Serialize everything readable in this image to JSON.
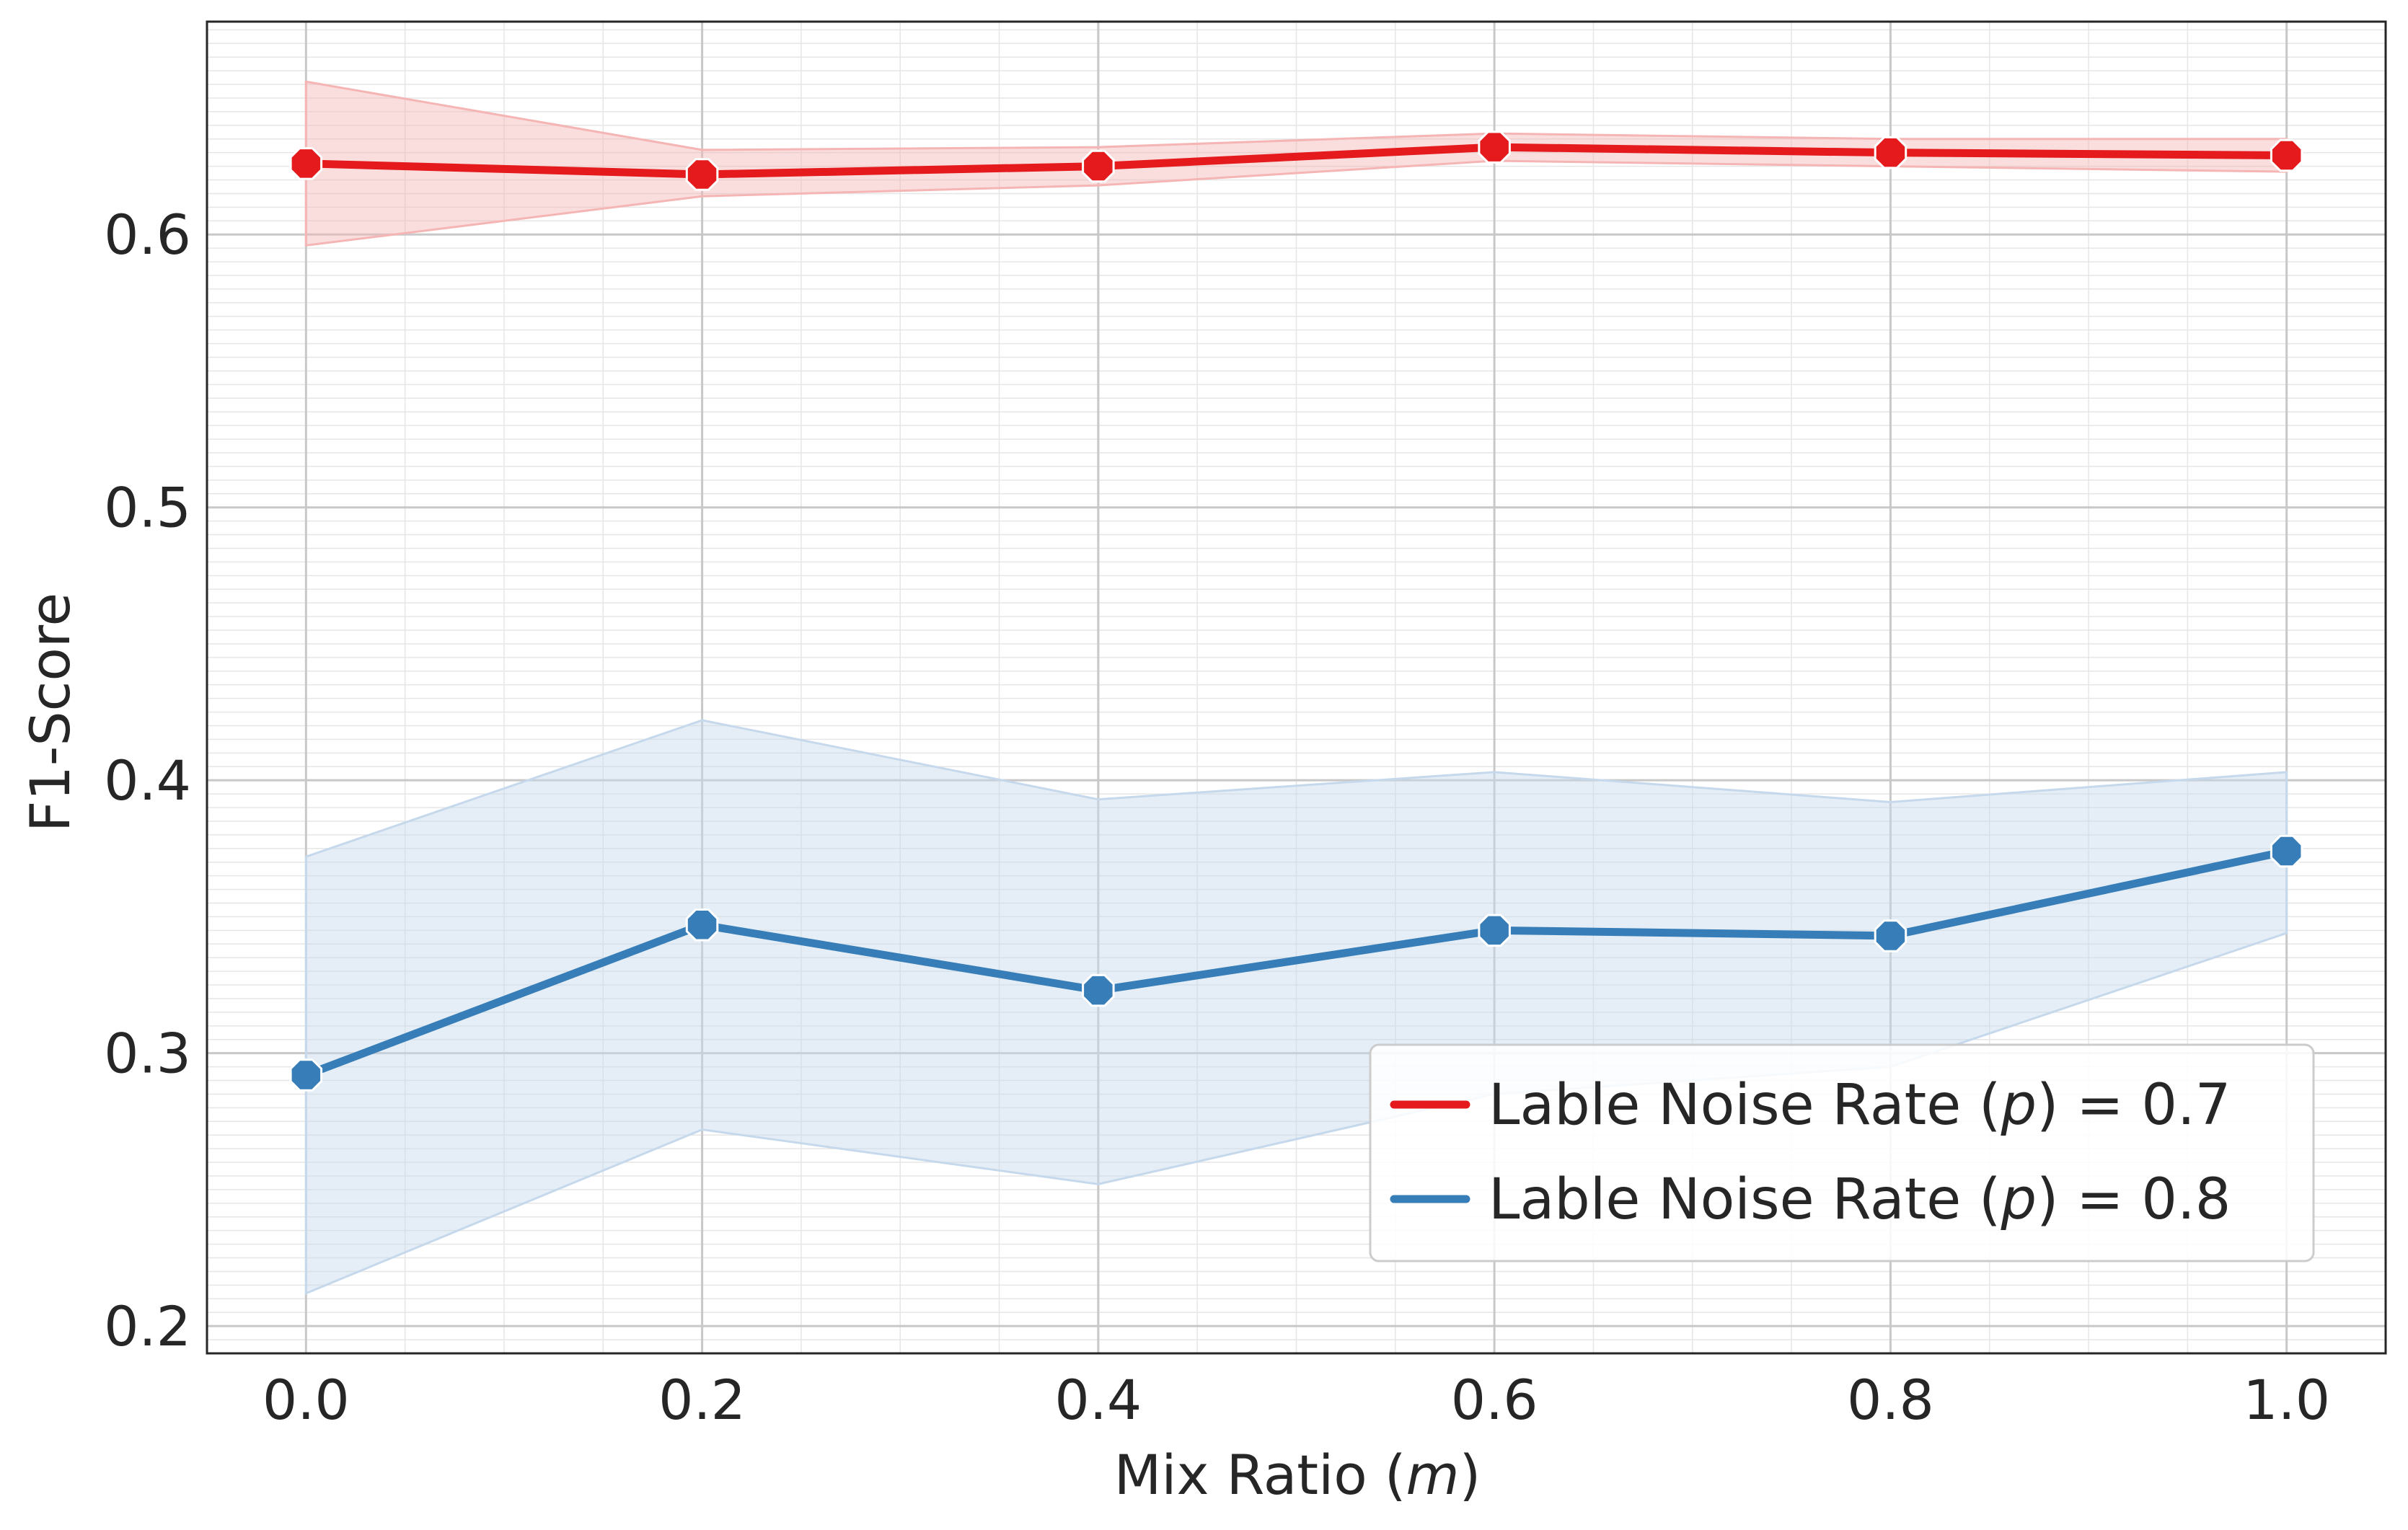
{
  "chart_data": {
    "type": "line",
    "title": "",
    "xlabel_prefix": "Mix Ratio (",
    "xlabel_var": "m",
    "xlabel_suffix": ")",
    "ylabel": "F1-Score",
    "xlim": [
      -0.05,
      1.05
    ],
    "ylim": [
      0.19,
      0.678
    ],
    "x_ticks": [
      0.0,
      0.2,
      0.4,
      0.6,
      0.8,
      1.0
    ],
    "x_tick_labels": [
      "0.0",
      "0.2",
      "0.4",
      "0.6",
      "0.8",
      "1.0"
    ],
    "y_ticks": [
      0.2,
      0.3,
      0.4,
      0.5,
      0.6
    ],
    "y_tick_labels": [
      "0.2",
      "0.3",
      "0.4",
      "0.5",
      "0.6"
    ],
    "grid": "major and minor",
    "legend_position": "lower-right",
    "x": [
      0.0,
      0.2,
      0.4,
      0.6,
      0.8,
      1.0
    ],
    "series": [
      {
        "name": "Lable Noise Rate (p) = 0.7",
        "legend_prefix": "Lable Noise Rate (",
        "legend_var": "p",
        "legend_suffix": ") = 0.7",
        "color": "#e41a1c",
        "band_color": "#f5b5b5",
        "values": [
          0.626,
          0.622,
          0.625,
          0.632,
          0.63,
          0.629
        ],
        "lower": [
          0.596,
          0.614,
          0.618,
          0.627,
          0.625,
          0.623
        ],
        "upper": [
          0.656,
          0.631,
          0.632,
          0.637,
          0.635,
          0.635
        ]
      },
      {
        "name": "Lable Noise Rate (p) = 0.8",
        "legend_prefix": "Lable Noise Rate (",
        "legend_var": "p",
        "legend_suffix": ") = 0.8",
        "color": "#377eb8",
        "band_color": "#c6d9ec",
        "values": [
          0.292,
          0.347,
          0.323,
          0.345,
          0.343,
          0.374
        ],
        "lower": [
          0.212,
          0.272,
          0.252,
          0.285,
          0.295,
          0.344
        ],
        "upper": [
          0.372,
          0.422,
          0.393,
          0.403,
          0.392,
          0.403
        ]
      }
    ]
  }
}
